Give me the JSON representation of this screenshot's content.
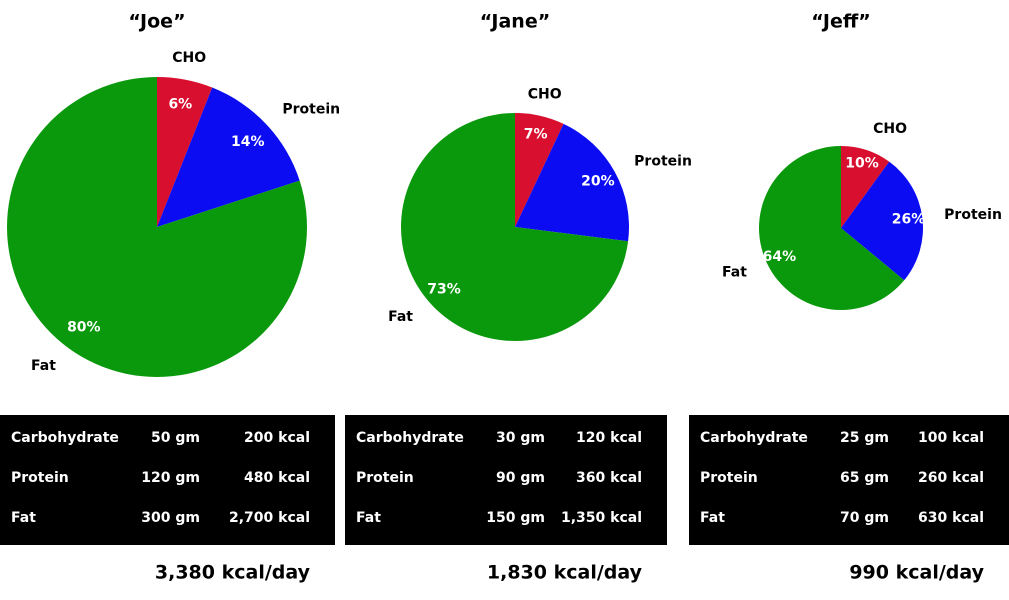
{
  "chart_data": [
    {
      "type": "pie",
      "title": "“Joe”",
      "categories": [
        "CHO",
        "Protein",
        "Fat"
      ],
      "values": [
        6,
        14,
        80
      ],
      "value_labels": [
        "6%",
        "14%",
        "80%"
      ],
      "colors": [
        "#d90f2f",
        "#0b0cf2",
        "#0a990c"
      ]
    },
    {
      "type": "pie",
      "title": "“Jane”",
      "categories": [
        "CHO",
        "Protein",
        "Fat"
      ],
      "values": [
        7,
        20,
        73
      ],
      "value_labels": [
        "7%",
        "20%",
        "73%"
      ],
      "colors": [
        "#d90f2f",
        "#0b0cf2",
        "#0a990c"
      ]
    },
    {
      "type": "pie",
      "title": "“Jeff”",
      "categories": [
        "CHO",
        "Protein",
        "Fat"
      ],
      "values": [
        10,
        26,
        64
      ],
      "value_labels": [
        "10%",
        "26%",
        "64%"
      ],
      "colors": [
        "#d90f2f",
        "#0b0cf2",
        "#0a990c"
      ]
    }
  ],
  "tables": [
    {
      "rows": [
        [
          "Carbohydrate",
          "50 gm",
          "200 kcal"
        ],
        [
          "Protein",
          "120 gm",
          "480 kcal"
        ],
        [
          "Fat",
          "300 gm",
          "2,700 kcal"
        ]
      ],
      "total": "3,380 kcal/day"
    },
    {
      "rows": [
        [
          "Carbohydrate",
          "30 gm",
          "120 kcal"
        ],
        [
          "Protein",
          "90 gm",
          "360 kcal"
        ],
        [
          "Fat",
          "150 gm",
          "1,350 kcal"
        ]
      ],
      "total": "1,830 kcal/day"
    },
    {
      "rows": [
        [
          "Carbohydrate",
          "25 gm",
          "100 kcal"
        ],
        [
          "Protein",
          "65 gm",
          "260 kcal"
        ],
        [
          "Fat",
          "70 gm",
          "630 kcal"
        ]
      ],
      "total": "990 kcal/day"
    }
  ]
}
